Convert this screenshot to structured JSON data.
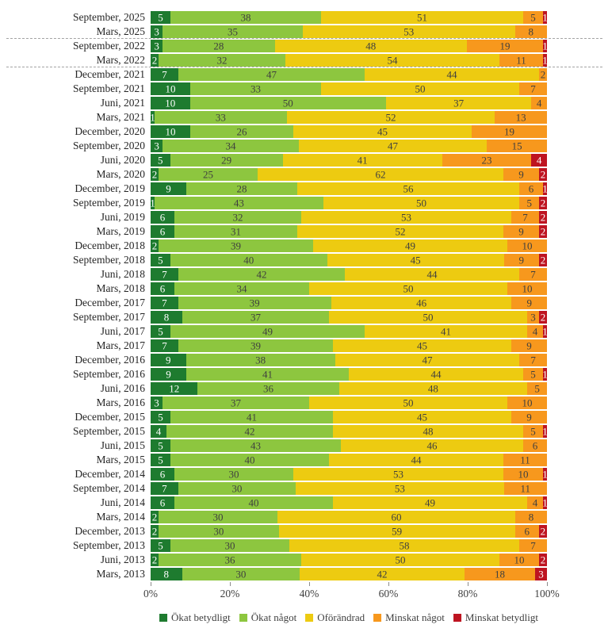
{
  "chart_data": {
    "type": "bar",
    "subtype": "horizontal-stacked-100pct",
    "title": "",
    "xlabel": "",
    "ylabel": "",
    "x_ticks": [
      "0%",
      "20%",
      "40%",
      "60%",
      "80%",
      "100%"
    ],
    "xlim": [
      0,
      100
    ],
    "grid": false,
    "legend_position": "bottom-center",
    "separator_lines_after_rows": [
      1,
      3
    ],
    "categories": [
      "September, 2025",
      "Mars, 2025",
      "September, 2022",
      "Mars, 2022",
      "December, 2021",
      "September, 2021",
      "Juni, 2021",
      "Mars, 2021",
      "December, 2020",
      "September, 2020",
      "Juni, 2020",
      "Mars, 2020",
      "December, 2019",
      "September, 2019",
      "Juni, 2019",
      "Mars, 2019",
      "December, 2018",
      "September, 2018",
      "Juni, 2018",
      "Mars, 2018",
      "December, 2017",
      "September, 2017",
      "Juni, 2017",
      "Mars, 2017",
      "December, 2016",
      "September, 2016",
      "Juni, 2016",
      "Mars, 2016",
      "December, 2015",
      "September, 2015",
      "Juni, 2015",
      "Mars, 2015",
      "December, 2014",
      "September, 2014",
      "Juni, 2014",
      "Mars, 2014",
      "December, 2013",
      "September, 2013",
      "Juni, 2013",
      "Mars, 2013"
    ],
    "series": [
      {
        "name": "Ökat betydligt",
        "color": "#1e7b2f",
        "label_color": "#ffffff",
        "values": [
          5,
          3,
          3,
          2,
          7,
          10,
          10,
          1,
          10,
          3,
          5,
          2,
          9,
          1,
          6,
          6,
          2,
          5,
          7,
          6,
          7,
          8,
          5,
          7,
          9,
          9,
          12,
          3,
          5,
          4,
          5,
          5,
          6,
          7,
          6,
          2,
          2,
          5,
          2,
          8
        ]
      },
      {
        "name": "Ökat något",
        "color": "#8dc63f",
        "label_color": "#3f3f3f",
        "values": [
          38,
          35,
          28,
          32,
          47,
          33,
          50,
          33,
          26,
          34,
          29,
          25,
          28,
          43,
          32,
          31,
          39,
          40,
          42,
          34,
          39,
          37,
          49,
          39,
          38,
          41,
          36,
          37,
          41,
          42,
          43,
          40,
          30,
          30,
          40,
          30,
          30,
          30,
          36,
          30
        ]
      },
      {
        "name": "Oförändrad",
        "color": "#edcb11",
        "label_color": "#3f3f3f",
        "values": [
          51,
          53,
          48,
          54,
          44,
          50,
          37,
          52,
          45,
          47,
          41,
          62,
          56,
          50,
          53,
          52,
          49,
          45,
          44,
          50,
          46,
          50,
          41,
          45,
          47,
          44,
          48,
          50,
          45,
          48,
          46,
          44,
          53,
          53,
          49,
          60,
          59,
          58,
          50,
          42
        ]
      },
      {
        "name": "Minskat något",
        "color": "#f7981d",
        "label_color": "#3f3f3f",
        "values": [
          5,
          8,
          19,
          11,
          2,
          7,
          4,
          13,
          19,
          15,
          23,
          9,
          6,
          5,
          7,
          9,
          10,
          9,
          7,
          10,
          9,
          3,
          4,
          9,
          7,
          5,
          5,
          10,
          9,
          5,
          6,
          11,
          10,
          11,
          4,
          8,
          6,
          7,
          10,
          18
        ]
      },
      {
        "name": "Minskat betydligt",
        "color": "#be1421",
        "label_color": "#ffffff",
        "values": [
          1,
          0,
          1,
          1,
          0,
          0,
          0,
          0,
          0,
          0,
          4,
          2,
          1,
          2,
          2,
          2,
          0,
          2,
          0,
          0,
          0,
          2,
          1,
          0,
          0,
          1,
          0,
          0,
          0,
          1,
          0,
          0,
          1,
          0,
          1,
          0,
          2,
          0,
          2,
          3
        ]
      }
    ]
  },
  "colors": {
    "separator_line": "#a3a3a3",
    "axis_tick": "#8c8c8c",
    "axis_text": "#3f3f3f",
    "category_text": "#262626"
  }
}
